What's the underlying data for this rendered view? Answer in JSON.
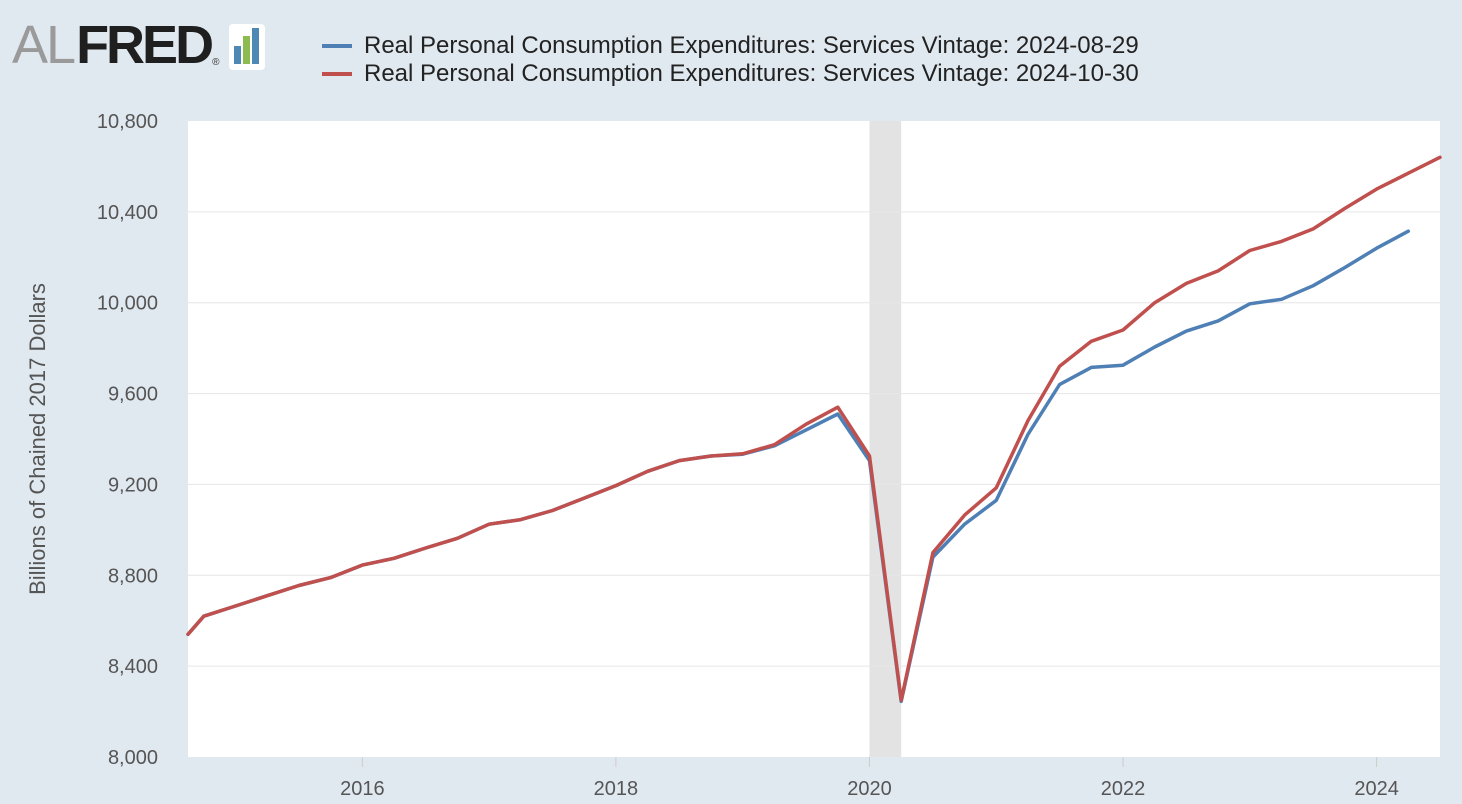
{
  "logo": {
    "al": "AL",
    "fred": "FRED",
    "registered": "®",
    "icon_colors": [
      "#4e88b4",
      "#8cbc4f",
      "#4e88b4"
    ]
  },
  "chart_data": {
    "type": "line",
    "title": "",
    "xlabel": "",
    "ylabel": "Billions of Chained 2017 Dollars",
    "xlim": [
      2014.625,
      2024.5
    ],
    "ylim": [
      8000,
      10800
    ],
    "yticks": [
      8000,
      8400,
      8800,
      9200,
      9600,
      10000,
      10400,
      10800
    ],
    "ytick_labels": [
      "8,000",
      "8,400",
      "8,800",
      "9,200",
      "9,600",
      "10,000",
      "10,400",
      "10,800"
    ],
    "xticks": [
      2016,
      2018,
      2020,
      2022,
      2024
    ],
    "xtick_labels": [
      "2016",
      "2018",
      "2020",
      "2022",
      "2024"
    ],
    "recession": {
      "start": 2020.0,
      "end": 2020.25
    },
    "grid": true,
    "legend_position": "top",
    "series": [
      {
        "name": "Real Personal Consumption Expenditures: Services Vintage: 2024-08-29",
        "color": "#4e7fb5",
        "x": [
          2014.625,
          2014.75,
          2015.0,
          2015.25,
          2015.5,
          2015.75,
          2016.0,
          2016.25,
          2016.5,
          2016.75,
          2017.0,
          2017.25,
          2017.5,
          2017.75,
          2018.0,
          2018.25,
          2018.5,
          2018.75,
          2019.0,
          2019.25,
          2019.5,
          2019.75,
          2020.0,
          2020.25,
          2020.5,
          2020.75,
          2021.0,
          2021.25,
          2021.5,
          2021.75,
          2022.0,
          2022.25,
          2022.5,
          2022.75,
          2023.0,
          2023.25,
          2023.5,
          2023.75,
          2024.0,
          2024.25
        ],
        "values": [
          8540,
          8620,
          8665,
          8710,
          8755,
          8790,
          8845,
          8875,
          8920,
          8963,
          9025,
          9045,
          9085,
          9140,
          9195,
          9258,
          9305,
          9325,
          9333,
          9370,
          9440,
          9510,
          9305,
          8245,
          8880,
          9025,
          9130,
          9420,
          9640,
          9715,
          9725,
          9805,
          9875,
          9920,
          9995,
          10015,
          10075,
          10155,
          10240,
          10315
        ]
      },
      {
        "name": "Real Personal Consumption Expenditures: Services Vintage: 2024-10-30",
        "color": "#c0504d",
        "x": [
          2014.625,
          2014.75,
          2015.0,
          2015.25,
          2015.5,
          2015.75,
          2016.0,
          2016.25,
          2016.5,
          2016.75,
          2017.0,
          2017.25,
          2017.5,
          2017.75,
          2018.0,
          2018.25,
          2018.5,
          2018.75,
          2019.0,
          2019.25,
          2019.5,
          2019.75,
          2020.0,
          2020.25,
          2020.5,
          2020.75,
          2021.0,
          2021.25,
          2021.5,
          2021.75,
          2022.0,
          2022.25,
          2022.5,
          2022.75,
          2023.0,
          2023.25,
          2023.5,
          2023.75,
          2024.0,
          2024.25,
          2024.5
        ],
        "values": [
          8540,
          8620,
          8665,
          8710,
          8755,
          8790,
          8845,
          8875,
          8920,
          8963,
          9025,
          9045,
          9085,
          9140,
          9195,
          9258,
          9305,
          9325,
          9335,
          9375,
          9465,
          9540,
          9325,
          8250,
          8900,
          9065,
          9185,
          9480,
          9720,
          9830,
          9880,
          10000,
          10085,
          10140,
          10230,
          10270,
          10325,
          10415,
          10500,
          10570,
          10640
        ]
      }
    ]
  }
}
